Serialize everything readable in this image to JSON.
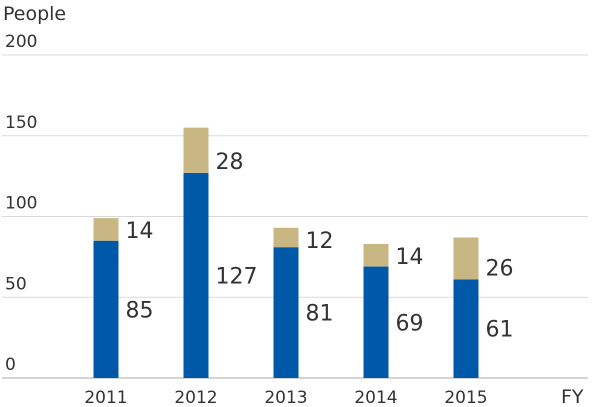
{
  "chart_data": {
    "type": "bar",
    "stacked": true,
    "y_unit_label": "People",
    "x_unit_label": "FY",
    "categories": [
      "2011",
      "2012",
      "2013",
      "2014",
      "2015"
    ],
    "series": [
      {
        "values": [
          85,
          127,
          81,
          69,
          61
        ],
        "color": "#0059a8"
      },
      {
        "values": [
          14,
          28,
          12,
          14,
          26
        ],
        "color": "#c8b683"
      }
    ],
    "ylim": [
      0,
      200
    ],
    "yticks": [
      "0",
      "50",
      "100",
      "150",
      "200"
    ],
    "grid": true
  }
}
